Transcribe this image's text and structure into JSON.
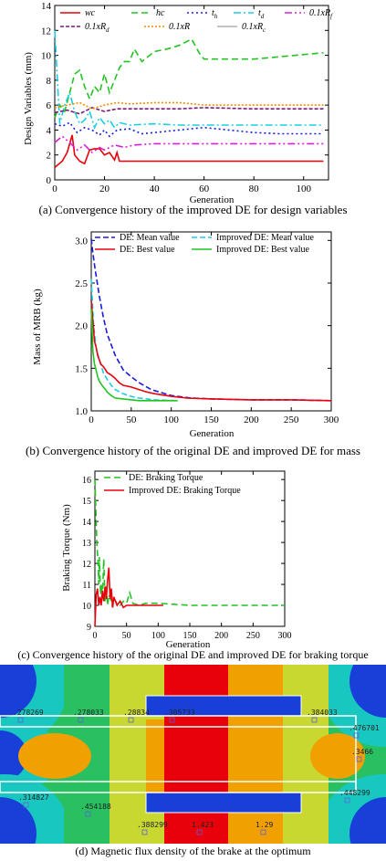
{
  "chart_data": [
    {
      "type": "line",
      "panel": "a",
      "xlabel": "Generation",
      "ylabel": "Design Variables (mm)",
      "xlim": [
        0,
        110
      ],
      "ylim": [
        0,
        14
      ],
      "xticks": [
        "0",
        "20",
        "40",
        "60",
        "80",
        "100"
      ],
      "yticks": [
        "0",
        "2",
        "4",
        "6",
        "8",
        "10",
        "12",
        "14"
      ],
      "legend": [
        "wc",
        "hc",
        "t_h",
        "t_d",
        "0.1xR_f",
        "0.1xR_d",
        "0.1xR",
        "0.1xR_c"
      ],
      "legend_display": [
        {
          "base": "wc",
          "sub": ""
        },
        {
          "base": "hc",
          "sub": ""
        },
        {
          "base": "t",
          "sub": "h"
        },
        {
          "base": "t",
          "sub": "d"
        },
        {
          "base": "0.1xR",
          "sub": "f"
        },
        {
          "base": "0.1xR",
          "sub": "d"
        },
        {
          "base": "0.1xR",
          "sub": ""
        },
        {
          "base": "0.1xR",
          "sub": "c"
        }
      ],
      "series": [
        {
          "name": "wc",
          "color": "#e8000b",
          "dash": "",
          "x": [
            0,
            3,
            5,
            7,
            8,
            10,
            12,
            14,
            16,
            18,
            20,
            22,
            24,
            25,
            26,
            30,
            40,
            60,
            80,
            108
          ],
          "y": [
            1.0,
            1.5,
            2.2,
            3.6,
            2.0,
            1.5,
            1.3,
            2.4,
            2.5,
            2.5,
            2.0,
            2.2,
            1.6,
            2.2,
            1.5,
            1.5,
            1.5,
            1.5,
            1.5,
            1.5
          ]
        },
        {
          "name": "hc",
          "color": "#22c422",
          "dash": "7,4",
          "x": [
            0,
            2,
            4,
            6,
            8,
            10,
            12,
            14,
            16,
            18,
            20,
            22,
            24,
            26,
            28,
            30,
            32,
            35,
            40,
            45,
            50,
            55,
            58,
            60,
            80,
            108
          ],
          "y": [
            5.0,
            6.0,
            5.5,
            7.0,
            8.5,
            8.8,
            7.5,
            6.5,
            7.5,
            7.0,
            8.5,
            7.0,
            8.0,
            9.0,
            9.5,
            9.5,
            10.5,
            9.5,
            10.3,
            10.5,
            10.8,
            11.3,
            10.2,
            9.7,
            9.7,
            10.2
          ]
        },
        {
          "name": "t_h",
          "color": "#1a1adc",
          "dash": "2,3",
          "x": [
            0,
            3,
            6,
            9,
            12,
            15,
            18,
            20,
            22,
            25,
            30,
            35,
            40,
            50,
            60,
            70,
            80,
            90,
            108
          ],
          "y": [
            4.5,
            4.3,
            4.6,
            3.8,
            4.2,
            4.0,
            3.6,
            4.0,
            3.5,
            4.0,
            4.1,
            3.7,
            3.8,
            4.0,
            4.2,
            4.0,
            3.8,
            3.7,
            3.7
          ]
        },
        {
          "name": "t_d",
          "color": "#1ecde4",
          "dash": "8,3,2,3",
          "x": [
            0,
            2,
            4,
            6,
            8,
            10,
            12,
            14,
            16,
            18,
            20,
            22,
            24,
            26,
            30,
            40,
            50,
            60,
            80,
            108
          ],
          "y": [
            12.0,
            4.5,
            6.0,
            7.0,
            5.5,
            4.5,
            4.8,
            5.5,
            4.2,
            5.0,
            4.5,
            4.8,
            4.2,
            4.6,
            4.4,
            4.5,
            4.4,
            4.4,
            4.4,
            4.4
          ]
        },
        {
          "name": "0.1xR_f",
          "color": "#d620d6",
          "dash": "8,3,2,3,2,3",
          "x": [
            0,
            3,
            6,
            9,
            12,
            15,
            18,
            20,
            24,
            28,
            32,
            40,
            50,
            60,
            80,
            108
          ],
          "y": [
            3.0,
            3.5,
            3.0,
            2.4,
            2.8,
            2.2,
            2.6,
            2.4,
            2.8,
            2.6,
            2.8,
            2.9,
            2.9,
            2.9,
            2.9,
            2.9
          ]
        },
        {
          "name": "0.1xR_d",
          "color": "#7b1a7b",
          "dash": "4,2",
          "x": [
            0,
            5,
            10,
            15,
            20,
            25,
            30,
            40,
            50,
            60,
            80,
            108
          ],
          "y": [
            5.4,
            5.6,
            5.3,
            5.8,
            5.5,
            5.7,
            5.7,
            5.7,
            5.7,
            5.8,
            5.7,
            5.7
          ]
        },
        {
          "name": "0.1xR",
          "color": "#f08c00",
          "dash": "2,2",
          "x": [
            0,
            5,
            10,
            15,
            20,
            25,
            30,
            40,
            50,
            60,
            80,
            108
          ],
          "y": [
            5.8,
            6.0,
            6.2,
            5.7,
            6.0,
            6.2,
            6.1,
            6.2,
            6.2,
            6.0,
            6.0,
            6.0
          ]
        },
        {
          "name": "0.1xR_c",
          "color": "#b0b0b0",
          "dash": "",
          "x": [],
          "y": []
        }
      ]
    },
    {
      "type": "line",
      "panel": "b",
      "xlabel": "Generation",
      "ylabel": "Mass of MRB (kg)",
      "xlim": [
        0,
        300
      ],
      "ylim": [
        1.0,
        3.1
      ],
      "xticks": [
        "0",
        "50",
        "100",
        "150",
        "200",
        "250",
        "300"
      ],
      "yticks": [
        "1.0",
        "1.5",
        "2.0",
        "2.5",
        "3.0"
      ],
      "legend": [
        "DE: Mean value",
        "Improved DE: Mean value",
        "DE: Best value",
        "Improved DE: Best value"
      ],
      "series": [
        {
          "name": "DE: Mean value",
          "color": "#1a1adc",
          "dash": "6,3",
          "x": [
            0,
            2,
            5,
            10,
            15,
            20,
            30,
            40,
            50,
            60,
            75,
            100,
            125,
            150,
            200,
            250,
            300
          ],
          "y": [
            3.02,
            2.85,
            2.65,
            2.35,
            2.1,
            1.9,
            1.65,
            1.48,
            1.4,
            1.33,
            1.25,
            1.18,
            1.15,
            1.14,
            1.13,
            1.13,
            1.12
          ]
        },
        {
          "name": "Improved DE: Mean value",
          "color": "#1ecde4",
          "dash": "6,3",
          "x": [
            0,
            3,
            6,
            10,
            15,
            20,
            25,
            30,
            40,
            50,
            60,
            80,
            108
          ],
          "y": [
            2.55,
            2.0,
            1.75,
            1.6,
            1.45,
            1.37,
            1.3,
            1.25,
            1.2,
            1.17,
            1.15,
            1.13,
            1.12
          ]
        },
        {
          "name": "DE: Best value",
          "color": "#e8000b",
          "dash": "",
          "x": [
            0,
            2,
            4,
            6,
            8,
            10,
            12,
            15,
            18,
            20,
            25,
            30,
            35,
            40,
            50,
            60,
            70,
            80,
            100,
            120,
            150,
            200,
            250,
            300
          ],
          "y": [
            2.3,
            2.05,
            1.82,
            1.75,
            1.65,
            1.6,
            1.55,
            1.52,
            1.48,
            1.45,
            1.42,
            1.38,
            1.33,
            1.3,
            1.28,
            1.25,
            1.22,
            1.2,
            1.17,
            1.15,
            1.14,
            1.13,
            1.13,
            1.12
          ]
        },
        {
          "name": "Improved DE: Best value",
          "color": "#22c422",
          "dash": "",
          "x": [
            0,
            2,
            4,
            6,
            8,
            10,
            12,
            15,
            18,
            20,
            25,
            30,
            40,
            50,
            60,
            80,
            108
          ],
          "y": [
            2.2,
            1.7,
            1.55,
            1.48,
            1.4,
            1.35,
            1.32,
            1.28,
            1.25,
            1.22,
            1.18,
            1.15,
            1.14,
            1.13,
            1.12,
            1.12,
            1.12
          ]
        }
      ]
    },
    {
      "type": "line",
      "panel": "c",
      "xlabel": "Generation",
      "ylabel": "Braking Torque (Nm)",
      "xlim": [
        0,
        300
      ],
      "ylim": [
        9,
        16.4
      ],
      "xticks": [
        "0",
        "50",
        "100",
        "150",
        "200",
        "250",
        "300"
      ],
      "yticks": [
        "9",
        "10",
        "11",
        "12",
        "13",
        "14",
        "15",
        "16"
      ],
      "legend": [
        "DE: Braking Torque",
        "Improved DE: Braking Torque"
      ],
      "series": [
        {
          "name": "DE: Braking Torque",
          "color": "#22c422",
          "dash": "7,4",
          "x": [
            0,
            1,
            2,
            3,
            4,
            5,
            6,
            7,
            8,
            9,
            10,
            12,
            14,
            16,
            18,
            20,
            22,
            25,
            28,
            30,
            35,
            40,
            45,
            50,
            55,
            60,
            70,
            80,
            100,
            150,
            200,
            250,
            300
          ],
          "y": [
            16.0,
            15.0,
            14.0,
            13.0,
            12.5,
            12.0,
            11.0,
            12.3,
            11.5,
            10.5,
            11.0,
            10.4,
            12.2,
            10.2,
            11.0,
            10.0,
            10.5,
            10.3,
            9.9,
            10.3,
            10.1,
            10.0,
            10.2,
            10.1,
            10.6,
            10.1,
            10.0,
            10.1,
            10.1,
            10.0,
            10.0,
            10.0,
            10.0
          ]
        },
        {
          "name": "Improved DE: Braking Torque",
          "color": "#e8000b",
          "dash": "",
          "x": [
            0,
            2,
            4,
            6,
            8,
            10,
            12,
            14,
            16,
            18,
            20,
            22,
            24,
            26,
            28,
            30,
            35,
            40,
            45,
            50,
            60,
            80,
            108
          ],
          "y": [
            9.0,
            10.5,
            10.8,
            10.0,
            10.4,
            10.0,
            10.7,
            10.2,
            10.9,
            10.3,
            11.2,
            11.8,
            10.3,
            10.8,
            9.9,
            10.4,
            10.0,
            10.2,
            9.9,
            10.0,
            10.0,
            10.0,
            10.0
          ]
        }
      ]
    }
  ],
  "captions": {
    "a": "(a) Convergence history of the improved DE for design variables",
    "b": "(b) Convergence history of the original DE and improved DE for mass",
    "c": "(c) Convergence history of the original DE and improved DE for braking torque",
    "d": "(d) Magnetic flux density of the brake at the optimum"
  },
  "flux_map": {
    "labels": [
      ".278269",
      ".278033",
      ".28834",
      ".305733",
      ".384033",
      ".476701",
      ".3466",
      ".448299",
      ".314827",
      ".454188",
      ".388299",
      "1.423",
      "1.29"
    ],
    "colors": {
      "max": "#e8000b",
      "high": "#f0a000",
      "mid": "#c8d830",
      "low": "#28c060",
      "lower": "#18c8c0",
      "lowest": "#1840d8",
      "min": "#0a1890"
    }
  }
}
